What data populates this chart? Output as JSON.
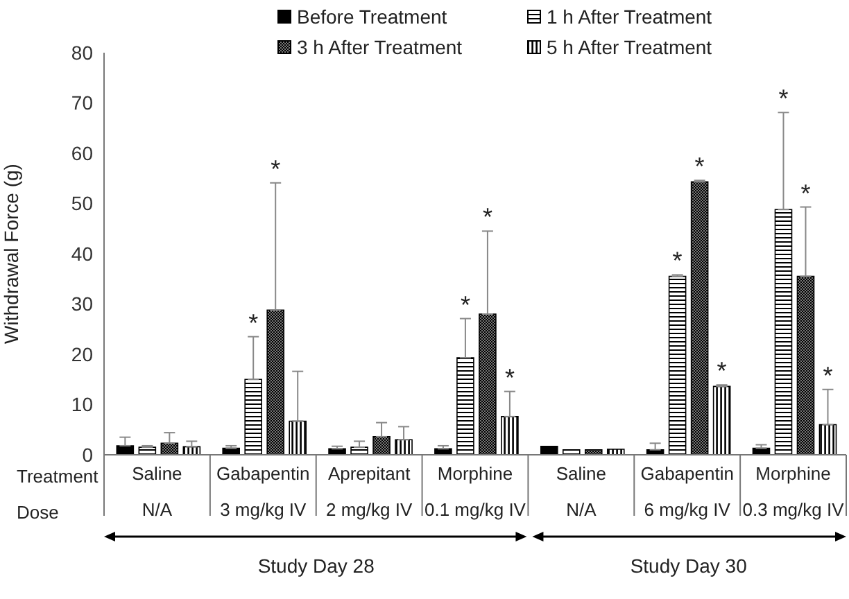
{
  "chart_data": {
    "type": "bar",
    "ylabel": "Withdrawal Force (g)",
    "categories": [
      "Saline\nN/A",
      "Gabapentin\n3 mg/kg IV",
      "Aprepitant\n2 mg/kg IV",
      "Morphine\n0.1 mg/kg IV",
      "Saline\nN/A",
      "Gabapentin\n6 mg/kg IV",
      "Morphine\n0.3 mg/kg IV"
    ],
    "series": [
      {
        "name": "Before Treatment",
        "color": "#000000",
        "values": [
          1.8,
          1.3,
          1.2,
          1.2,
          1.7,
          1.0,
          1.3
        ],
        "errors": [
          [
            1.8,
            3.5
          ],
          [
            1.3,
            1.8
          ],
          [
            1.2,
            1.7
          ],
          [
            1.2,
            1.8
          ],
          null,
          [
            1.0,
            2.3
          ],
          [
            1.3,
            2.0
          ]
        ]
      },
      {
        "name": "1 h After Treatment",
        "color": "#000000",
        "values": [
          1.5,
          15.0,
          1.5,
          19.3,
          1.0,
          35.5,
          48.8
        ],
        "errors": [
          [
            1.5,
            1.8
          ],
          [
            15.0,
            23.5
          ],
          [
            1.5,
            2.7
          ],
          [
            19.3,
            27.1
          ],
          null,
          [
            35.5,
            35.8
          ],
          [
            48.8,
            68.1
          ]
        ]
      },
      {
        "name": "3 h After Treatment",
        "color": "#000000",
        "values": [
          2.3,
          28.8,
          3.6,
          28.0,
          1.0,
          54.3,
          35.5
        ],
        "errors": [
          [
            2.3,
            4.4
          ],
          [
            28.8,
            54.1
          ],
          [
            3.6,
            6.4
          ],
          [
            28.0,
            44.5
          ],
          null,
          [
            54.3,
            54.6
          ],
          [
            35.5,
            49.3
          ]
        ]
      },
      {
        "name": "5 h After Treatment",
        "color": "#000000",
        "values": [
          1.6,
          6.7,
          3.0,
          7.6,
          1.1,
          13.6,
          6.0
        ],
        "errors": [
          [
            1.6,
            2.7
          ],
          [
            6.7,
            16.6
          ],
          [
            3.0,
            5.6
          ],
          [
            7.6,
            12.6
          ],
          null,
          [
            13.6,
            13.9
          ],
          [
            6.0,
            13.0
          ]
        ]
      }
    ],
    "ylim": [
      0,
      80
    ],
    "yticks": [
      0,
      10,
      20,
      30,
      40,
      50,
      60,
      70,
      80
    ],
    "legend": "top",
    "annotations": [
      "Treatment",
      "Dose",
      "Study Day 28",
      "Study Day 30",
      {
        "text": "*",
        "x": "Gabapentin\n3 mg/kg IV",
        "y": 23.5
      },
      {
        "text": "*",
        "x": "Gabapentin\n3 mg/kg IV",
        "y": 54.1
      },
      {
        "text": "*",
        "x": "Morphine\n0.1 mg/kg IV",
        "y": 27.1
      },
      {
        "text": "*",
        "x": "Morphine\n0.1 mg/kg IV",
        "y": 44.5
      },
      {
        "text": "*",
        "x": "Morphine\n0.1 mg/kg IV",
        "y": 12.6
      },
      {
        "text": "*",
        "x": "Gabapentin\n6 mg/kg IV",
        "y": 35.8
      },
      {
        "text": "*",
        "x": "Gabapentin\n6 mg/kg IV",
        "y": 54.6
      },
      {
        "text": "*",
        "x": "Gabapentin\n6 mg/kg IV",
        "y": 13.9
      },
      {
        "text": "*",
        "x": "Morphine\n0.3 mg/kg IV",
        "y": 68.1
      },
      {
        "text": "*",
        "x": "Morphine\n0.3 mg/kg IV",
        "y": 49.3
      },
      {
        "text": "*",
        "x": "Morphine\n0.3 mg/kg IV",
        "y": 13.0
      }
    ]
  }
}
